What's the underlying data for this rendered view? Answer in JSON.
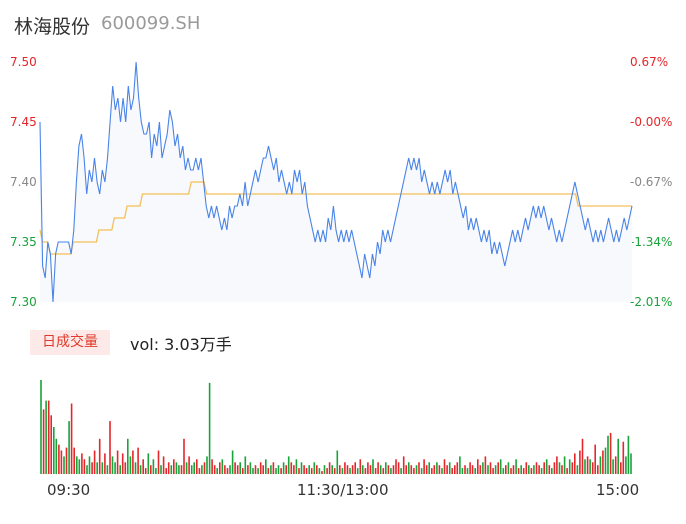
{
  "header": {
    "name": "林海股份",
    "code": "600099.SH"
  },
  "badge": "日成交量",
  "volume_text": "vol: 3.03万手",
  "colors": {
    "price_line": "#4a84e8",
    "avg_line": "#f3c05a",
    "up": "#e5262b",
    "down": "#19a33a",
    "area": "#f7f9fd"
  },
  "chart_data": [
    {
      "type": "line",
      "y_ticks": [
        "7.50",
        "7.45",
        "7.40",
        "7.35",
        "7.30"
      ],
      "pct_ticks": [
        "0.67%",
        "-0.00%",
        "-0.67%",
        "-1.34%",
        "-2.01%"
      ],
      "ylim": [
        7.3,
        7.5
      ],
      "x_labels": [
        "09:30",
        "11:30/13:00",
        "15:00"
      ],
      "series": [
        {
          "values": [
            7.45,
            7.33,
            7.32,
            7.35,
            7.34,
            7.3,
            7.34,
            7.35,
            7.35,
            7.35,
            7.35,
            7.35,
            7.34,
            7.36,
            7.4,
            7.43,
            7.44,
            7.42,
            7.39,
            7.41,
            7.4,
            7.42,
            7.4,
            7.39,
            7.41,
            7.4,
            7.42,
            7.45,
            7.48,
            7.46,
            7.47,
            7.45,
            7.47,
            7.45,
            7.48,
            7.46,
            7.47,
            7.5,
            7.47,
            7.45,
            7.44,
            7.44,
            7.45,
            7.42,
            7.44,
            7.43,
            7.45,
            7.42,
            7.43,
            7.44,
            7.46,
            7.45,
            7.43,
            7.44,
            7.42,
            7.43,
            7.41,
            7.42,
            7.41,
            7.41,
            7.42,
            7.41,
            7.42,
            7.4,
            7.38,
            7.37,
            7.38,
            7.37,
            7.38,
            7.37,
            7.36,
            7.37,
            7.36,
            7.38,
            7.37,
            7.38,
            7.38,
            7.39,
            7.38,
            7.4,
            7.38,
            7.39,
            7.4,
            7.41,
            7.4,
            7.41,
            7.42,
            7.42,
            7.43,
            7.42,
            7.41,
            7.42,
            7.4,
            7.41,
            7.4,
            7.39,
            7.4,
            7.39,
            7.41,
            7.4,
            7.41,
            7.39,
            7.4,
            7.38,
            7.37,
            7.36,
            7.35,
            7.36,
            7.35,
            7.36,
            7.35,
            7.37,
            7.36,
            7.38,
            7.36,
            7.35,
            7.36,
            7.35,
            7.36,
            7.35,
            7.36,
            7.35,
            7.34,
            7.33,
            7.32,
            7.34,
            7.33,
            7.32,
            7.34,
            7.33,
            7.35,
            7.34,
            7.36,
            7.35,
            7.36,
            7.35,
            7.36,
            7.37,
            7.38,
            7.39,
            7.4,
            7.41,
            7.42,
            7.41,
            7.42,
            7.41,
            7.42,
            7.4,
            7.41,
            7.4,
            7.39,
            7.4,
            7.39,
            7.4,
            7.39,
            7.4,
            7.41,
            7.4,
            7.41,
            7.39,
            7.4,
            7.39,
            7.38,
            7.37,
            7.38,
            7.36,
            7.37,
            7.36,
            7.37,
            7.36,
            7.35,
            7.36,
            7.35,
            7.36,
            7.34,
            7.35,
            7.34,
            7.35,
            7.34,
            7.33,
            7.34,
            7.35,
            7.36,
            7.35,
            7.36,
            7.35,
            7.36,
            7.37,
            7.36,
            7.37,
            7.38,
            7.37,
            7.38,
            7.37,
            7.38,
            7.37,
            7.36,
            7.37,
            7.36,
            7.35,
            7.36,
            7.35,
            7.36,
            7.37,
            7.38,
            7.39,
            7.4,
            7.39,
            7.38,
            7.37,
            7.36,
            7.37,
            7.36,
            7.35,
            7.36,
            7.35,
            7.36,
            7.35,
            7.36,
            7.37,
            7.36,
            7.35,
            7.36,
            7.35,
            7.36,
            7.37,
            7.36,
            7.37,
            7.38
          ]
        },
        {
          "values": [
            7.36,
            7.35,
            7.35,
            7.35,
            7.34,
            7.34,
            7.34,
            7.34,
            7.34,
            7.34,
            7.34,
            7.34,
            7.34,
            7.35,
            7.35,
            7.35,
            7.35,
            7.35,
            7.35,
            7.35,
            7.35,
            7.35,
            7.35,
            7.36,
            7.36,
            7.36,
            7.36,
            7.36,
            7.36,
            7.37,
            7.37,
            7.37,
            7.37,
            7.37,
            7.38,
            7.38,
            7.38,
            7.38,
            7.38,
            7.38,
            7.39,
            7.39,
            7.39,
            7.39,
            7.39,
            7.39,
            7.39,
            7.39,
            7.39,
            7.39,
            7.39,
            7.39,
            7.39,
            7.39,
            7.39,
            7.39,
            7.39,
            7.39,
            7.39,
            7.4,
            7.4,
            7.4,
            7.4,
            7.4,
            7.4,
            7.39,
            7.39,
            7.39,
            7.39,
            7.39,
            7.39,
            7.39,
            7.39,
            7.39,
            7.39,
            7.39,
            7.39,
            7.39,
            7.39,
            7.39,
            7.39,
            7.39,
            7.39,
            7.39,
            7.39,
            7.39,
            7.39,
            7.39,
            7.39,
            7.39,
            7.39,
            7.39,
            7.39,
            7.39,
            7.39,
            7.39,
            7.39,
            7.39,
            7.39,
            7.39,
            7.39,
            7.39,
            7.39,
            7.39,
            7.39,
            7.39,
            7.39,
            7.39,
            7.39,
            7.39,
            7.39,
            7.39,
            7.39,
            7.39,
            7.39,
            7.39,
            7.39,
            7.39,
            7.39,
            7.39,
            7.39,
            7.39,
            7.39,
            7.39,
            7.39,
            7.39,
            7.39,
            7.39,
            7.39,
            7.39,
            7.39,
            7.39,
            7.39,
            7.39,
            7.39,
            7.39,
            7.39,
            7.39,
            7.39,
            7.39,
            7.39,
            7.39,
            7.39,
            7.39,
            7.39,
            7.39,
            7.39,
            7.39,
            7.39,
            7.39,
            7.39,
            7.39,
            7.39,
            7.39,
            7.39,
            7.39,
            7.39,
            7.39,
            7.39,
            7.39,
            7.39,
            7.39,
            7.39,
            7.39,
            7.39,
            7.39,
            7.39,
            7.39,
            7.39,
            7.39,
            7.39,
            7.39,
            7.39,
            7.39,
            7.39,
            7.39,
            7.39,
            7.39,
            7.39,
            7.39,
            7.39,
            7.39,
            7.39,
            7.39,
            7.39,
            7.39,
            7.39,
            7.39,
            7.39,
            7.39,
            7.39,
            7.39,
            7.39,
            7.39,
            7.39,
            7.39,
            7.39,
            7.39,
            7.39,
            7.39,
            7.39,
            7.39,
            7.39,
            7.39,
            7.39,
            7.39,
            7.39,
            7.39,
            7.39,
            7.39,
            7.38,
            7.38,
            7.38,
            7.38,
            7.38,
            7.38,
            7.38,
            7.38,
            7.38,
            7.38,
            7.38,
            7.38,
            7.38,
            7.38,
            7.38,
            7.38,
            7.38,
            7.38,
            7.38,
            7.38,
            7.38,
            7.38
          ]
        }
      ]
    },
    {
      "type": "bar",
      "volumes": [
        32,
        22,
        25,
        25,
        20,
        16,
        12,
        10,
        8,
        6,
        9,
        18,
        24,
        9,
        6,
        5,
        7,
        5,
        3,
        6,
        4,
        8,
        4,
        12,
        4,
        7,
        3,
        18,
        6,
        4,
        8,
        3,
        7,
        4,
        12,
        6,
        8,
        4,
        9,
        3,
        5,
        2,
        7,
        3,
        5,
        2,
        8,
        3,
        6,
        2,
        4,
        3,
        5,
        4,
        3,
        3,
        12,
        4,
        6,
        3,
        4,
        5,
        2,
        3,
        4,
        6,
        31,
        5,
        3,
        2,
        4,
        5,
        3,
        2,
        3,
        8,
        4,
        3,
        4,
        2,
        6,
        3,
        4,
        2,
        3,
        2,
        4,
        3,
        5,
        2,
        3,
        4,
        2,
        3,
        2,
        4,
        3,
        6,
        4,
        3,
        5,
        2,
        4,
        3,
        2,
        3,
        2,
        4,
        3,
        2,
        1,
        3,
        2,
        4,
        3,
        2,
        8,
        3,
        2,
        4,
        3,
        2,
        3,
        4,
        2,
        5,
        3,
        2,
        4,
        3,
        5,
        2,
        4,
        3,
        2,
        4,
        3,
        2,
        3,
        5,
        4,
        2,
        6,
        3,
        4,
        3,
        2,
        3,
        4,
        2,
        5,
        3,
        4,
        2,
        3,
        4,
        3,
        2,
        5,
        3,
        4,
        2,
        3,
        4,
        6,
        2,
        3,
        2,
        4,
        3,
        2,
        5,
        3,
        4,
        6,
        3,
        4,
        2,
        3,
        4,
        5,
        2,
        3,
        4,
        2,
        3,
        5,
        2,
        3,
        2,
        4,
        3,
        2,
        3,
        4,
        3,
        2,
        4,
        5,
        3,
        2,
        4,
        6,
        4,
        3,
        6,
        2,
        5,
        4,
        7,
        3,
        8,
        12,
        5,
        6,
        5,
        4,
        10,
        3,
        6,
        8,
        9,
        13,
        14,
        5,
        6,
        12,
        4,
        11,
        6,
        13,
        7
      ],
      "up": [
        0,
        1,
        0,
        1,
        1,
        0,
        0,
        1,
        1,
        0,
        1,
        0,
        1,
        1,
        0,
        0,
        1,
        1,
        0,
        0,
        1,
        1,
        0,
        1,
        0,
        1,
        0,
        1,
        0,
        0,
        1,
        0,
        1,
        1,
        0,
        0,
        1,
        0,
        1,
        0,
        1,
        1,
        0,
        1,
        0,
        0,
        1,
        0,
        1,
        1,
        1,
        0,
        1,
        0,
        0,
        1,
        1,
        0,
        1,
        0,
        0,
        1,
        1,
        0,
        1,
        0,
        0,
        1,
        1,
        0,
        1,
        0,
        1,
        1,
        0,
        0,
        1,
        1,
        0,
        1,
        0,
        1,
        0,
        0,
        1,
        0,
        1,
        1,
        0,
        1,
        0,
        1,
        0,
        0,
        1,
        0,
        1,
        0,
        1,
        1,
        0,
        1,
        0,
        1,
        1,
        0,
        1,
        0,
        1,
        0,
        1,
        0,
        1,
        1,
        0,
        1,
        0,
        1,
        0,
        1,
        1,
        0,
        1,
        1,
        0,
        1,
        0,
        1,
        1,
        1,
        0,
        1,
        1,
        0,
        1,
        0,
        1,
        0,
        1,
        1,
        1,
        0,
        1,
        1,
        0,
        1,
        1,
        0,
        1,
        0,
        1,
        1,
        0,
        1,
        1,
        0,
        1,
        0,
        1,
        1,
        0,
        1,
        1,
        1,
        0,
        0,
        1,
        0,
        1,
        1,
        0,
        1,
        1,
        0,
        1,
        0,
        1,
        1,
        0,
        1,
        0,
        0,
        1,
        0,
        1,
        1,
        0,
        1,
        0,
        1,
        1,
        0,
        1,
        0,
        1,
        1,
        0,
        1,
        0,
        1,
        0,
        1,
        1,
        0,
        1,
        0,
        1,
        0,
        1,
        1,
        0,
        1,
        1,
        0,
        1,
        0,
        1,
        1,
        1,
        0,
        1,
        0,
        0,
        1,
        0,
        1,
        0,
        1,
        1,
        0,
        0,
        0
      ]
    }
  ]
}
